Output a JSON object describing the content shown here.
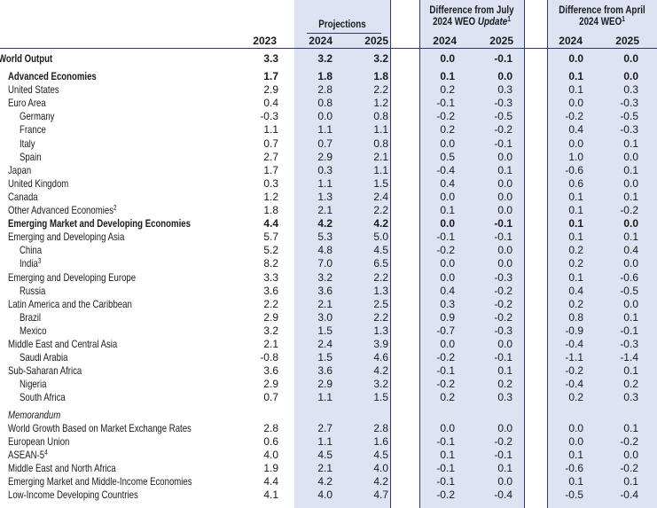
{
  "headers": {
    "projections": "Projections",
    "diff_july": "Difference from July",
    "diff_july_line2_prefix": "2024 WEO ",
    "diff_july_line2_italic": "Update",
    "diff_july_sup": "1",
    "diff_april": "Difference from April",
    "diff_april_line2": "2024 WEO",
    "diff_april_sup": "1",
    "years": [
      "2023",
      "2024",
      "2025",
      "2024",
      "2025",
      "2024",
      "2025"
    ]
  },
  "rows": [
    {
      "name": "World Output",
      "sup": "",
      "indent": 0,
      "bold": true,
      "memo": false,
      "values": [
        "3.3",
        "3.2",
        "3.2",
        "0.0",
        "-0.1",
        "0.0",
        "0.0"
      ]
    },
    {
      "name": "Advanced Economies",
      "sup": "",
      "indent": 1,
      "bold": true,
      "memo": false,
      "values": [
        "1.7",
        "1.8",
        "1.8",
        "0.1",
        "0.0",
        "0.1",
        "0.0"
      ]
    },
    {
      "name": "United States",
      "sup": "",
      "indent": 1,
      "bold": false,
      "memo": false,
      "values": [
        "2.9",
        "2.8",
        "2.2",
        "0.2",
        "0.3",
        "0.1",
        "0.3"
      ]
    },
    {
      "name": "Euro Area",
      "sup": "",
      "indent": 1,
      "bold": false,
      "memo": false,
      "values": [
        "0.4",
        "0.8",
        "1.2",
        "-0.1",
        "-0.3",
        "0.0",
        "-0.3"
      ]
    },
    {
      "name": "Germany",
      "sup": "",
      "indent": 2,
      "bold": false,
      "memo": false,
      "values": [
        "-0.3",
        "0.0",
        "0.8",
        "-0.2",
        "-0.5",
        "-0.2",
        "-0.5"
      ]
    },
    {
      "name": "France",
      "sup": "",
      "indent": 2,
      "bold": false,
      "memo": false,
      "values": [
        "1.1",
        "1.1",
        "1.1",
        "0.2",
        "-0.2",
        "0.4",
        "-0.3"
      ]
    },
    {
      "name": "Italy",
      "sup": "",
      "indent": 2,
      "bold": false,
      "memo": false,
      "values": [
        "0.7",
        "0.7",
        "0.8",
        "0.0",
        "-0.1",
        "0.0",
        "0.1"
      ]
    },
    {
      "name": "Spain",
      "sup": "",
      "indent": 2,
      "bold": false,
      "memo": false,
      "values": [
        "2.7",
        "2.9",
        "2.1",
        "0.5",
        "0.0",
        "1.0",
        "0.0"
      ]
    },
    {
      "name": "Japan",
      "sup": "",
      "indent": 1,
      "bold": false,
      "memo": false,
      "values": [
        "1.7",
        "0.3",
        "1.1",
        "-0.4",
        "0.1",
        "-0.6",
        "0.1"
      ]
    },
    {
      "name": "United Kingdom",
      "sup": "",
      "indent": 1,
      "bold": false,
      "memo": false,
      "values": [
        "0.3",
        "1.1",
        "1.5",
        "0.4",
        "0.0",
        "0.6",
        "0.0"
      ]
    },
    {
      "name": "Canada",
      "sup": "",
      "indent": 1,
      "bold": false,
      "memo": false,
      "values": [
        "1.2",
        "1.3",
        "2.4",
        "0.0",
        "0.0",
        "0.1",
        "0.1"
      ]
    },
    {
      "name": "Other Advanced Economies",
      "sup": "2",
      "indent": 1,
      "bold": false,
      "memo": false,
      "values": [
        "1.8",
        "2.1",
        "2.2",
        "0.1",
        "0.0",
        "0.1",
        "-0.2"
      ]
    },
    {
      "name": "Emerging Market and Developing Economies",
      "sup": "",
      "indent": 1,
      "bold": true,
      "memo": false,
      "values": [
        "4.4",
        "4.2",
        "4.2",
        "0.0",
        "-0.1",
        "0.1",
        "0.0"
      ]
    },
    {
      "name": "Emerging and Developing Asia",
      "sup": "",
      "indent": 1,
      "bold": false,
      "memo": false,
      "values": [
        "5.7",
        "5.3",
        "5.0",
        "-0.1",
        "-0.1",
        "0.1",
        "0.1"
      ]
    },
    {
      "name": "China",
      "sup": "",
      "indent": 2,
      "bold": false,
      "memo": false,
      "values": [
        "5.2",
        "4.8",
        "4.5",
        "-0.2",
        "0.0",
        "0.2",
        "0.4"
      ]
    },
    {
      "name": "India",
      "sup": "3",
      "indent": 2,
      "bold": false,
      "memo": false,
      "values": [
        "8.2",
        "7.0",
        "6.5",
        "0.0",
        "0.0",
        "0.2",
        "0.0"
      ]
    },
    {
      "name": "Emerging and Developing Europe",
      "sup": "",
      "indent": 1,
      "bold": false,
      "memo": false,
      "values": [
        "3.3",
        "3.2",
        "2.2",
        "0.0",
        "-0.3",
        "0.1",
        "-0.6"
      ]
    },
    {
      "name": "Russia",
      "sup": "",
      "indent": 2,
      "bold": false,
      "memo": false,
      "values": [
        "3.6",
        "3.6",
        "1.3",
        "0.4",
        "-0.2",
        "0.4",
        "-0.5"
      ]
    },
    {
      "name": "Latin America and the Caribbean",
      "sup": "",
      "indent": 1,
      "bold": false,
      "memo": false,
      "values": [
        "2.2",
        "2.1",
        "2.5",
        "0.3",
        "-0.2",
        "0.2",
        "0.0"
      ]
    },
    {
      "name": "Brazil",
      "sup": "",
      "indent": 2,
      "bold": false,
      "memo": false,
      "values": [
        "2.9",
        "3.0",
        "2.2",
        "0.9",
        "-0.2",
        "0.8",
        "0.1"
      ]
    },
    {
      "name": "Mexico",
      "sup": "",
      "indent": 2,
      "bold": false,
      "memo": false,
      "values": [
        "3.2",
        "1.5",
        "1.3",
        "-0.7",
        "-0.3",
        "-0.9",
        "-0.1"
      ]
    },
    {
      "name": "Middle East and Central Asia",
      "sup": "",
      "indent": 1,
      "bold": false,
      "memo": false,
      "values": [
        "2.1",
        "2.4",
        "3.9",
        "0.0",
        "0.0",
        "-0.4",
        "-0.3"
      ]
    },
    {
      "name": "Saudi Arabia",
      "sup": "",
      "indent": 2,
      "bold": false,
      "memo": false,
      "values": [
        "-0.8",
        "1.5",
        "4.6",
        "-0.2",
        "-0.1",
        "-1.1",
        "-1.4"
      ]
    },
    {
      "name": "Sub-Saharan Africa",
      "sup": "",
      "indent": 1,
      "bold": false,
      "memo": false,
      "values": [
        "3.6",
        "3.6",
        "4.2",
        "-0.1",
        "0.1",
        "-0.2",
        "0.1"
      ]
    },
    {
      "name": "Nigeria",
      "sup": "",
      "indent": 2,
      "bold": false,
      "memo": false,
      "values": [
        "2.9",
        "2.9",
        "3.2",
        "-0.2",
        "0.2",
        "-0.4",
        "0.2"
      ]
    },
    {
      "name": "South Africa",
      "sup": "",
      "indent": 2,
      "bold": false,
      "memo": false,
      "values": [
        "0.7",
        "1.1",
        "1.5",
        "0.2",
        "0.3",
        "0.2",
        "0.3"
      ]
    },
    {
      "name": "Memorandum",
      "sup": "",
      "indent": 1,
      "bold": false,
      "memo": true,
      "values": [
        "",
        "",
        "",
        "",
        "",
        "",
        ""
      ]
    },
    {
      "name": "World Growth Based on Market Exchange Rates",
      "sup": "",
      "indent": 1,
      "bold": false,
      "memo": false,
      "values": [
        "2.8",
        "2.7",
        "2.8",
        "0.0",
        "0.0",
        "0.0",
        "0.1"
      ]
    },
    {
      "name": "European Union",
      "sup": "",
      "indent": 1,
      "bold": false,
      "memo": false,
      "values": [
        "0.6",
        "1.1",
        "1.6",
        "-0.1",
        "-0.2",
        "0.0",
        "-0.2"
      ]
    },
    {
      "name": "ASEAN-5",
      "sup": "4",
      "indent": 1,
      "bold": false,
      "memo": false,
      "values": [
        "4.0",
        "4.5",
        "4.5",
        "0.1",
        "-0.1",
        "0.1",
        "0.0"
      ]
    },
    {
      "name": "Middle East and North Africa",
      "sup": "",
      "indent": 1,
      "bold": false,
      "memo": false,
      "values": [
        "1.9",
        "2.1",
        "4.0",
        "-0.1",
        "0.1",
        "-0.6",
        "-0.2"
      ]
    },
    {
      "name": "Emerging Market and Middle-Income Economies",
      "sup": "",
      "indent": 1,
      "bold": false,
      "memo": false,
      "values": [
        "4.4",
        "4.2",
        "4.2",
        "-0.1",
        "0.0",
        "0.1",
        "0.1"
      ]
    },
    {
      "name": "Low-Income Developing Countries",
      "sup": "",
      "indent": 1,
      "bold": false,
      "memo": false,
      "values": [
        "4.1",
        "4.0",
        "4.7",
        "-0.2",
        "-0.4",
        "-0.5",
        "-0.4"
      ]
    }
  ]
}
